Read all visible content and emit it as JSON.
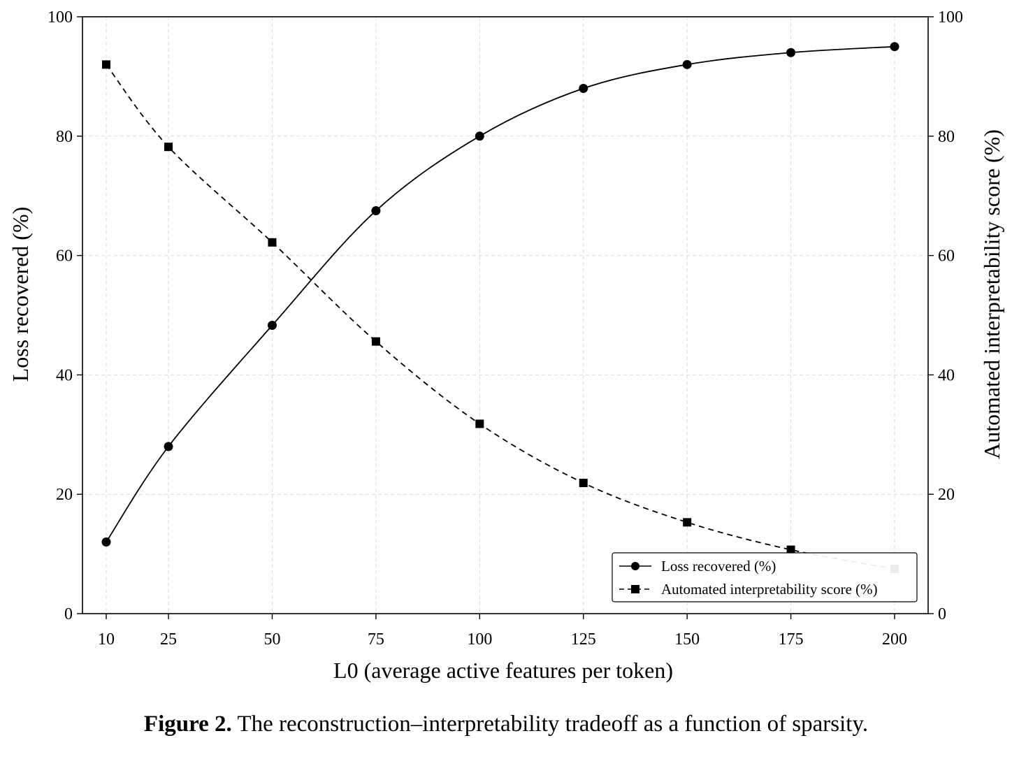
{
  "chart_data": {
    "type": "line",
    "x": [
      10,
      25,
      50,
      75,
      100,
      125,
      150,
      175,
      200
    ],
    "x_ticks": [
      "10",
      "25",
      "50",
      "75",
      "100",
      "125",
      "150",
      "175",
      "200"
    ],
    "xlabel": "L0 (average active features per token)",
    "ylabel_left": "Loss recovered (%)",
    "ylabel_right": "Automated interpretability score (%)",
    "ylim": [
      0,
      100
    ],
    "y_ticks": [
      "0",
      "20",
      "40",
      "60",
      "80",
      "100"
    ],
    "grid": true,
    "legend_position": "bottom-right",
    "series": [
      {
        "name": "Loss recovered (%)",
        "axis": "left",
        "style": "solid",
        "marker": "circle",
        "color": "#000000",
        "values": [
          12,
          28,
          48.3,
          67.5,
          80,
          88,
          92,
          94,
          95
        ]
      },
      {
        "name": "Automated interpretability score (%)",
        "axis": "right",
        "style": "dashed",
        "marker": "square",
        "color": "#000000",
        "values": [
          92,
          78.2,
          62.2,
          45.6,
          31.8,
          21.9,
          15.3,
          10.7,
          7.5
        ]
      }
    ]
  },
  "caption": {
    "label": "Figure 2.",
    "text": "The reconstruction–interpretability tradeoff as a function of sparsity."
  }
}
